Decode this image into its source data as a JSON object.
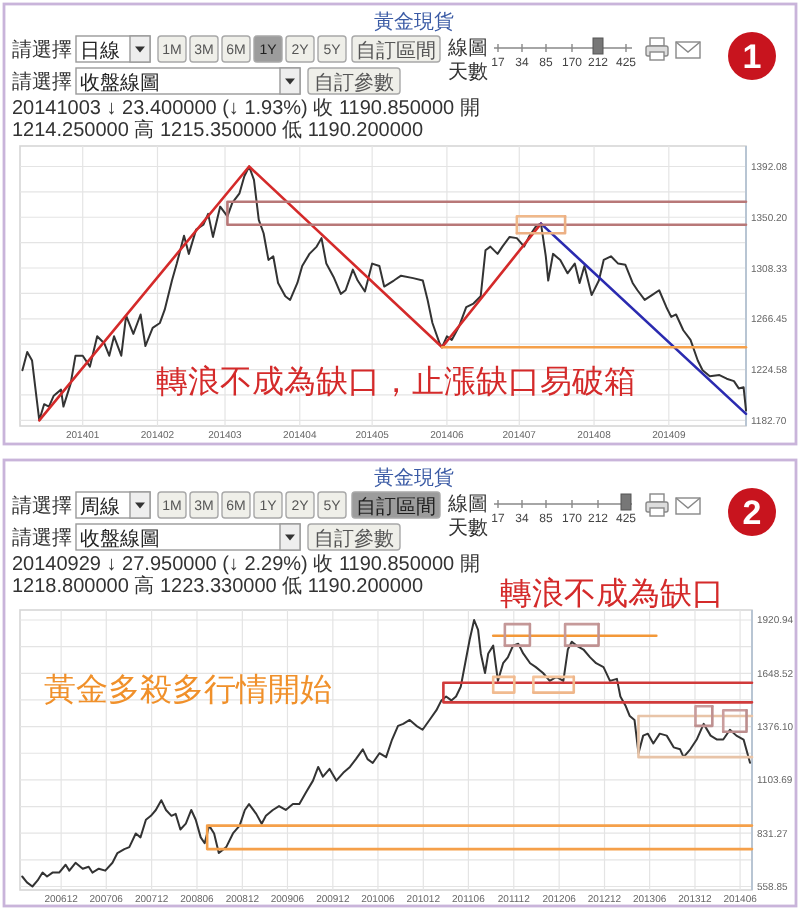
{
  "chart_data": [
    {
      "type": "line",
      "title": "黃金現貨",
      "subtitle": "20141003 ↓ 23.400000 (↓ 1.93%) 收 1190.850000 開 1214.250000 高 1215.350000 低 1190.200000",
      "annotations": [
        "請選擇",
        "日線",
        "1M",
        "3M",
        "6M",
        "1Y",
        "2Y",
        "5Y",
        "自訂區間",
        "線圖",
        "天數",
        "17",
        "34",
        "85",
        "170",
        "212",
        "425",
        "請選擇",
        "收盤線圖",
        "自訂參數",
        "1",
        "轉浪不成為缺口，止漲缺口易破箱"
      ],
      "xlim": [
        "2013-12-06",
        "2014-10-03"
      ],
      "xticks": [
        {
          "value": "2014-01-01",
          "label": "201401"
        },
        {
          "value": "2014-02-01",
          "label": "201402"
        },
        {
          "value": "2014-03-01",
          "label": "201403"
        },
        {
          "value": "2014-04-01",
          "label": "201404"
        },
        {
          "value": "2014-05-01",
          "label": "201405"
        },
        {
          "value": "2014-06-01",
          "label": "201406"
        },
        {
          "value": "2014-07-01",
          "label": "201407"
        },
        {
          "value": "2014-08-01",
          "label": "201408"
        },
        {
          "value": "2014-09-01",
          "label": "201409"
        }
      ],
      "ylim": [
        1178,
        1409
      ],
      "yticks": [
        {
          "value": 1182.7,
          "label": "1182.70"
        },
        {
          "value": 1203.64,
          "label": null
        },
        {
          "value": 1224.58,
          "label": "1224.58"
        },
        {
          "value": 1245.51,
          "label": null
        },
        {
          "value": 1266.45,
          "label": "1266.45"
        },
        {
          "value": 1287.39,
          "label": null
        },
        {
          "value": 1308.33,
          "label": "1308.33"
        },
        {
          "value": 1329.26,
          "label": null
        },
        {
          "value": 1350.2,
          "label": "1350.20"
        },
        {
          "value": 1371.14,
          "label": null
        },
        {
          "value": 1392.08,
          "label": "1392.08"
        }
      ],
      "grid": true,
      "series": [
        {
          "color": "#333333",
          "x": [
            "2013-12-07",
            "2013-12-09",
            "2013-12-11",
            "2013-12-13",
            "2013-12-14",
            "2013-12-16",
            "2013-12-18",
            "2013-12-20",
            "2013-12-23",
            "2013-12-24",
            "2013-12-27",
            "2013-12-29",
            "2014-01-01",
            "2014-01-04",
            "2014-01-07",
            "2014-01-10",
            "2014-01-12",
            "2014-01-14",
            "2014-01-17",
            "2014-01-19",
            "2014-01-22",
            "2014-01-25",
            "2014-01-27",
            "2014-01-30",
            "2014-02-02",
            "2014-02-04",
            "2014-02-07",
            "2014-02-09",
            "2014-02-12",
            "2014-02-14",
            "2014-02-17",
            "2014-02-20",
            "2014-02-22",
            "2014-02-24",
            "2014-02-27",
            "2014-03-02",
            "2014-03-04",
            "2014-03-07",
            "2014-03-09",
            "2014-03-11",
            "2014-03-13",
            "2014-03-15",
            "2014-03-17",
            "2014-03-19",
            "2014-03-21",
            "2014-03-23",
            "2014-03-26",
            "2014-03-28",
            "2014-03-31",
            "2014-04-02",
            "2014-04-05",
            "2014-04-08",
            "2014-04-10",
            "2014-04-12",
            "2014-04-15",
            "2014-04-18",
            "2014-04-20",
            "2014-04-23",
            "2014-04-25",
            "2014-04-28",
            "2014-05-01",
            "2014-05-04",
            "2014-05-06",
            "2014-05-10",
            "2014-05-13",
            "2014-05-18",
            "2014-05-22",
            "2014-05-24",
            "2014-05-26",
            "2014-05-29",
            "2014-05-30",
            "2014-06-01",
            "2014-06-03",
            "2014-06-06",
            "2014-06-09",
            "2014-06-12",
            "2014-06-15",
            "2014-06-17",
            "2014-06-19",
            "2014-06-22",
            "2014-06-24",
            "2014-06-27",
            "2014-06-30",
            "2014-07-03",
            "2014-07-05",
            "2014-07-08",
            "2014-07-10",
            "2014-07-12",
            "2014-07-13",
            "2014-07-15",
            "2014-07-18",
            "2014-07-21",
            "2014-07-24",
            "2014-07-26",
            "2014-07-28",
            "2014-07-31",
            "2014-08-03",
            "2014-08-05",
            "2014-08-08",
            "2014-08-11",
            "2014-08-14",
            "2014-08-17",
            "2014-08-19",
            "2014-08-22",
            "2014-08-25",
            "2014-08-28",
            "2014-08-31",
            "2014-09-02",
            "2014-09-04",
            "2014-09-07",
            "2014-09-10",
            "2014-09-13",
            "2014-09-15",
            "2014-09-18",
            "2014-09-22",
            "2014-09-25",
            "2014-09-28",
            "2014-09-30",
            "2014-10-02",
            "2014-10-03"
          ],
          "values": [
            1224,
            1239,
            1232,
            1199,
            1182.7,
            1196,
            1194,
            1203,
            1208,
            1194,
            1213,
            1236,
            1236,
            1227,
            1252,
            1246,
            1236,
            1252,
            1236,
            1269,
            1254,
            1270,
            1244,
            1259,
            1263,
            1274,
            1298,
            1312,
            1335,
            1320,
            1340,
            1344,
            1353,
            1334,
            1359,
            1351,
            1362,
            1370,
            1384,
            1392.08,
            1381,
            1348,
            1337,
            1315,
            1318,
            1296,
            1285,
            1282,
            1296,
            1310,
            1320,
            1326,
            1333,
            1312,
            1301,
            1287,
            1290,
            1307,
            1298,
            1289,
            1312,
            1310,
            1293,
            1298,
            1302,
            1300,
            1298,
            1282,
            1263,
            1246,
            1243,
            1252,
            1249,
            1260,
            1276,
            1279,
            1285,
            1323,
            1326,
            1320,
            1326,
            1334,
            1333,
            1326,
            1334,
            1343,
            1345,
            1318,
            1298,
            1320,
            1315,
            1304,
            1312,
            1296,
            1310,
            1286,
            1298,
            1315,
            1318,
            1312,
            1311,
            1296,
            1290,
            1282,
            1286,
            1290,
            1276,
            1268,
            1270,
            1257,
            1249,
            1232,
            1224,
            1219,
            1220,
            1217,
            1215,
            1209,
            1210,
            1190.85
          ]
        },
        {
          "color": "#d42a2a",
          "x": [
            "2013-12-14",
            "2014-03-11",
            "2014-05-30",
            "2014-07-10"
          ],
          "values": [
            1182.7,
            1392.08,
            1243,
            1345
          ]
        },
        {
          "color": "#2b2bb0",
          "x": [
            "2014-07-10",
            "2014-10-03"
          ],
          "values": [
            1345,
            1188
          ]
        },
        {
          "color": "#f5a04a",
          "x": [
            "2014-05-30",
            "2014-10-03"
          ],
          "values": [
            1243,
            1243
          ]
        },
        {
          "color": "#b87878",
          "x": [
            "2014-10-03",
            "2014-03-02",
            "2014-03-02",
            "2014-10-03"
          ],
          "values": [
            1363,
            1363,
            1344,
            1344
          ]
        },
        {
          "color": "#f0b88a",
          "x": [
            "2014-06-30",
            "2014-06-30",
            "2014-07-20"
          ],
          "values": [
            1337,
            1351,
            1351
          ]
        },
        {
          "color": "#ecb084",
          "x": [
            "2014-06-30",
            "2014-07-20",
            "2014-07-20"
          ],
          "values": [
            1337,
            1337,
            1351
          ]
        }
      ]
    },
    {
      "type": "line",
      "title": "黃金現貨",
      "subtitle": "20140929 ↓ 27.950000 (↓ 2.29%) 收 1190.850000 開 1218.800000 高 1223.330000 低 1190.200000",
      "annotations": [
        "請選擇",
        "周線",
        "1M",
        "3M",
        "6M",
        "1Y",
        "2Y",
        "5Y",
        "自訂區間",
        "線圖",
        "天數",
        "17",
        "34",
        "85",
        "170",
        "212",
        "425",
        "請選擇",
        "收盤線圖",
        "自訂參數",
        "2",
        "轉浪不成為缺口",
        "黃金多殺多行情開始"
      ],
      "xlim": [
        "2006-06-18",
        "2014-07-19"
      ],
      "xticks": [
        {
          "value": "2006-12-01",
          "label": "200612"
        },
        {
          "value": "2007-06-01",
          "label": "200706"
        },
        {
          "value": "2007-12-01",
          "label": "200712"
        },
        {
          "value": "2008-06-01",
          "label": "200806"
        },
        {
          "value": "2008-12-01",
          "label": "200812"
        },
        {
          "value": "2009-06-01",
          "label": "200906"
        },
        {
          "value": "2009-12-01",
          "label": "200912"
        },
        {
          "value": "2010-06-01",
          "label": "201006"
        },
        {
          "value": "2010-12-01",
          "label": "201012"
        },
        {
          "value": "2011-06-01",
          "label": "201106"
        },
        {
          "value": "2011-12-01",
          "label": "201112"
        },
        {
          "value": "2012-06-01",
          "label": "201206"
        },
        {
          "value": "2012-12-01",
          "label": "201212"
        },
        {
          "value": "2013-06-01",
          "label": "201306"
        },
        {
          "value": "2013-12-01",
          "label": "201312"
        },
        {
          "value": "2014-06-01",
          "label": "201406"
        }
      ],
      "ylim": [
        541,
        1972
      ],
      "yticks": [
        {
          "value": 558.85,
          "label": "558.85"
        },
        {
          "value": 695.06,
          "label": null
        },
        {
          "value": 831.27,
          "label": "831.27"
        },
        {
          "value": 967.48,
          "label": null
        },
        {
          "value": 1103.69,
          "label": "1103.69"
        },
        {
          "value": 1239.9,
          "label": null
        },
        {
          "value": 1376.1,
          "label": "1376.10"
        },
        {
          "value": 1512.31,
          "label": null
        },
        {
          "value": 1648.52,
          "label": "1648.52"
        },
        {
          "value": 1784.73,
          "label": null
        },
        {
          "value": 1920.94,
          "label": "1920.94"
        }
      ],
      "grid": true,
      "series": [
        {
          "color": "#333333",
          "x": [
            "2006-06-27",
            "2006-07-16",
            "2006-08-07",
            "2006-08-28",
            "2006-09-17",
            "2006-10-05",
            "2006-10-27",
            "2006-11-23",
            "2006-12-19",
            "2007-01-03",
            "2007-01-28",
            "2007-02-26",
            "2007-03-22",
            "2007-04-06",
            "2007-05-02",
            "2007-05-28",
            "2007-06-26",
            "2007-07-16",
            "2007-08-13",
            "2007-09-02",
            "2007-09-28",
            "2007-10-17",
            "2007-11-08",
            "2007-11-28",
            "2007-12-18",
            "2008-01-09",
            "2008-01-28",
            "2008-02-19",
            "2008-03-07",
            "2008-03-26",
            "2008-04-17",
            "2008-05-09",
            "2008-05-27",
            "2008-06-16",
            "2008-07-02",
            "2008-07-20",
            "2008-08-09",
            "2008-08-28",
            "2008-09-27",
            "2008-10-24",
            "2008-11-20",
            "2008-12-11",
            "2008-12-28",
            "2009-01-26",
            "2009-02-17",
            "2009-03-06",
            "2009-04-03",
            "2009-04-28",
            "2009-05-25",
            "2009-06-23",
            "2009-07-19",
            "2009-08-15",
            "2009-09-12",
            "2009-10-03",
            "2009-10-22",
            "2009-11-18",
            "2009-12-15",
            "2010-01-12",
            "2010-02-08",
            "2010-03-04",
            "2010-04-01",
            "2010-04-20",
            "2010-05-11",
            "2010-06-07",
            "2010-07-04",
            "2010-07-28",
            "2010-08-21",
            "2010-09-11",
            "2010-10-07",
            "2010-11-03",
            "2010-11-28",
            "2010-12-26",
            "2011-01-23",
            "2011-02-12",
            "2011-03-03",
            "2011-03-24",
            "2011-04-12",
            "2011-05-01",
            "2011-05-22",
            "2011-06-06",
            "2011-06-24",
            "2011-07-10",
            "2011-07-21",
            "2011-08-07",
            "2011-08-20",
            "2011-09-09",
            "2011-09-28",
            "2011-10-19",
            "2011-11-07",
            "2011-11-28",
            "2011-12-19",
            "2012-01-08",
            "2012-02-05",
            "2012-02-28",
            "2012-03-28",
            "2012-04-24",
            "2012-05-21",
            "2012-06-18",
            "2012-07-06",
            "2012-07-22",
            "2012-08-10",
            "2012-09-07",
            "2012-10-04",
            "2012-10-28",
            "2012-11-27",
            "2012-12-23",
            "2013-01-20",
            "2013-02-03",
            "2013-02-25",
            "2013-03-13",
            "2013-04-01",
            "2013-04-17",
            "2013-05-06",
            "2013-05-25",
            "2013-06-16",
            "2013-07-12",
            "2013-08-09",
            "2013-09-06",
            "2013-10-02",
            "2013-10-16",
            "2013-11-12",
            "2013-12-08",
            "2014-01-05",
            "2014-02-02",
            "2014-02-28",
            "2014-03-25",
            "2014-04-21",
            "2014-05-17",
            "2014-06-15",
            "2014-07-11"
          ],
          "values": [
            610,
            580,
            558.85,
            590,
            630,
            610,
            630,
            630,
            670,
            640,
            680,
            650,
            660,
            630,
            650,
            640,
            680,
            730,
            750,
            760,
            830,
            810,
            900,
            920,
            950,
            1000,
            950,
            920,
            930,
            850,
            880,
            950,
            900,
            810,
            780,
            870,
            830,
            730,
            760,
            830,
            870,
            950,
            980,
            930,
            880,
            920,
            950,
            970,
            950,
            980,
            980,
            1040,
            1100,
            1170,
            1120,
            1160,
            1100,
            1140,
            1170,
            1210,
            1260,
            1210,
            1190,
            1240,
            1220,
            1310,
            1380,
            1390,
            1410,
            1380,
            1360,
            1410,
            1460,
            1510,
            1530,
            1510,
            1530,
            1580,
            1720,
            1820,
            1920.94,
            1870,
            1750,
            1650,
            1750,
            1790,
            1610,
            1700,
            1730,
            1790,
            1800,
            1750,
            1700,
            1680,
            1650,
            1610,
            1630,
            1610,
            1770,
            1810,
            1790,
            1770,
            1730,
            1700,
            1680,
            1610,
            1620,
            1530,
            1480,
            1430,
            1410,
            1240,
            1330,
            1340,
            1290,
            1340,
            1330,
            1270,
            1260,
            1220,
            1260,
            1310,
            1390,
            1330,
            1310,
            1310,
            1360,
            1330,
            1310,
            1190.85
          ]
        },
        {
          "color": "#f5a04a",
          "x": [
            "2014-07-19",
            "2008-07-12",
            "2008-07-12",
            "2014-07-19"
          ],
          "values": [
            870,
            870,
            750,
            750
          ]
        },
        {
          "color": "#f39838",
          "x": [
            "2011-09-09",
            "2013-06-28"
          ],
          "values": [
            1840,
            1840
          ]
        },
        {
          "color": "#d03a3a",
          "x": [
            "2014-07-19",
            "2011-02-20",
            "2011-02-20",
            "2014-07-19"
          ],
          "values": [
            1600,
            1600,
            1500,
            1500
          ]
        },
        {
          "color": "#e8c4a8",
          "x": [
            "2014-07-19",
            "2013-04-17",
            "2013-04-17",
            "2014-07-19"
          ],
          "values": [
            1430,
            1430,
            1220,
            1220
          ]
        },
        {
          "color": "#c49898",
          "x": [
            "2011-10-26",
            "2011-10-26",
            "2012-02-04"
          ],
          "values": [
            1790,
            1900,
            1900
          ]
        },
        {
          "color": "#c29494",
          "x": [
            "2011-10-26",
            "2012-02-04",
            "2012-02-04"
          ],
          "values": [
            1790,
            1790,
            1900
          ]
        },
        {
          "color": "#c69a9a",
          "x": [
            "2012-06-25",
            "2012-06-25",
            "2012-11-07"
          ],
          "values": [
            1790,
            1900,
            1900
          ]
        },
        {
          "color": "#c09292",
          "x": [
            "2012-06-25",
            "2012-11-07",
            "2012-11-07"
          ],
          "values": [
            1790,
            1790,
            1900
          ]
        },
        {
          "color": "#c89c9c",
          "x": [
            "2013-12-03",
            "2013-12-03",
            "2014-02-09"
          ],
          "values": [
            1380,
            1480,
            1480
          ]
        },
        {
          "color": "#be9090",
          "x": [
            "2013-12-03",
            "2014-02-09",
            "2014-02-09"
          ],
          "values": [
            1380,
            1380,
            1480
          ]
        },
        {
          "color": "#ca9e9e",
          "x": [
            "2014-03-25",
            "2014-03-25",
            "2014-06-27"
          ],
          "values": [
            1350,
            1460,
            1460
          ]
        },
        {
          "color": "#bc8e8e",
          "x": [
            "2014-03-25",
            "2014-06-27",
            "2014-06-27"
          ],
          "values": [
            1350,
            1350,
            1460
          ]
        },
        {
          "color": "#f3bf95",
          "x": [
            "2011-09-09",
            "2011-09-09",
            "2011-12-03"
          ],
          "values": [
            1550,
            1630,
            1630
          ]
        },
        {
          "color": "#f1bb90",
          "x": [
            "2011-09-09",
            "2011-12-03",
            "2011-12-03"
          ],
          "values": [
            1550,
            1550,
            1630
          ]
        },
        {
          "color": "#f5c39a",
          "x": [
            "2012-02-18",
            "2012-02-18",
            "2012-07-30"
          ],
          "values": [
            1550,
            1630,
            1630
          ]
        },
        {
          "color": "#efb78b",
          "x": [
            "2012-02-18",
            "2012-07-30",
            "2012-07-30"
          ],
          "values": [
            1550,
            1550,
            1630
          ]
        }
      ]
    }
  ]
}
